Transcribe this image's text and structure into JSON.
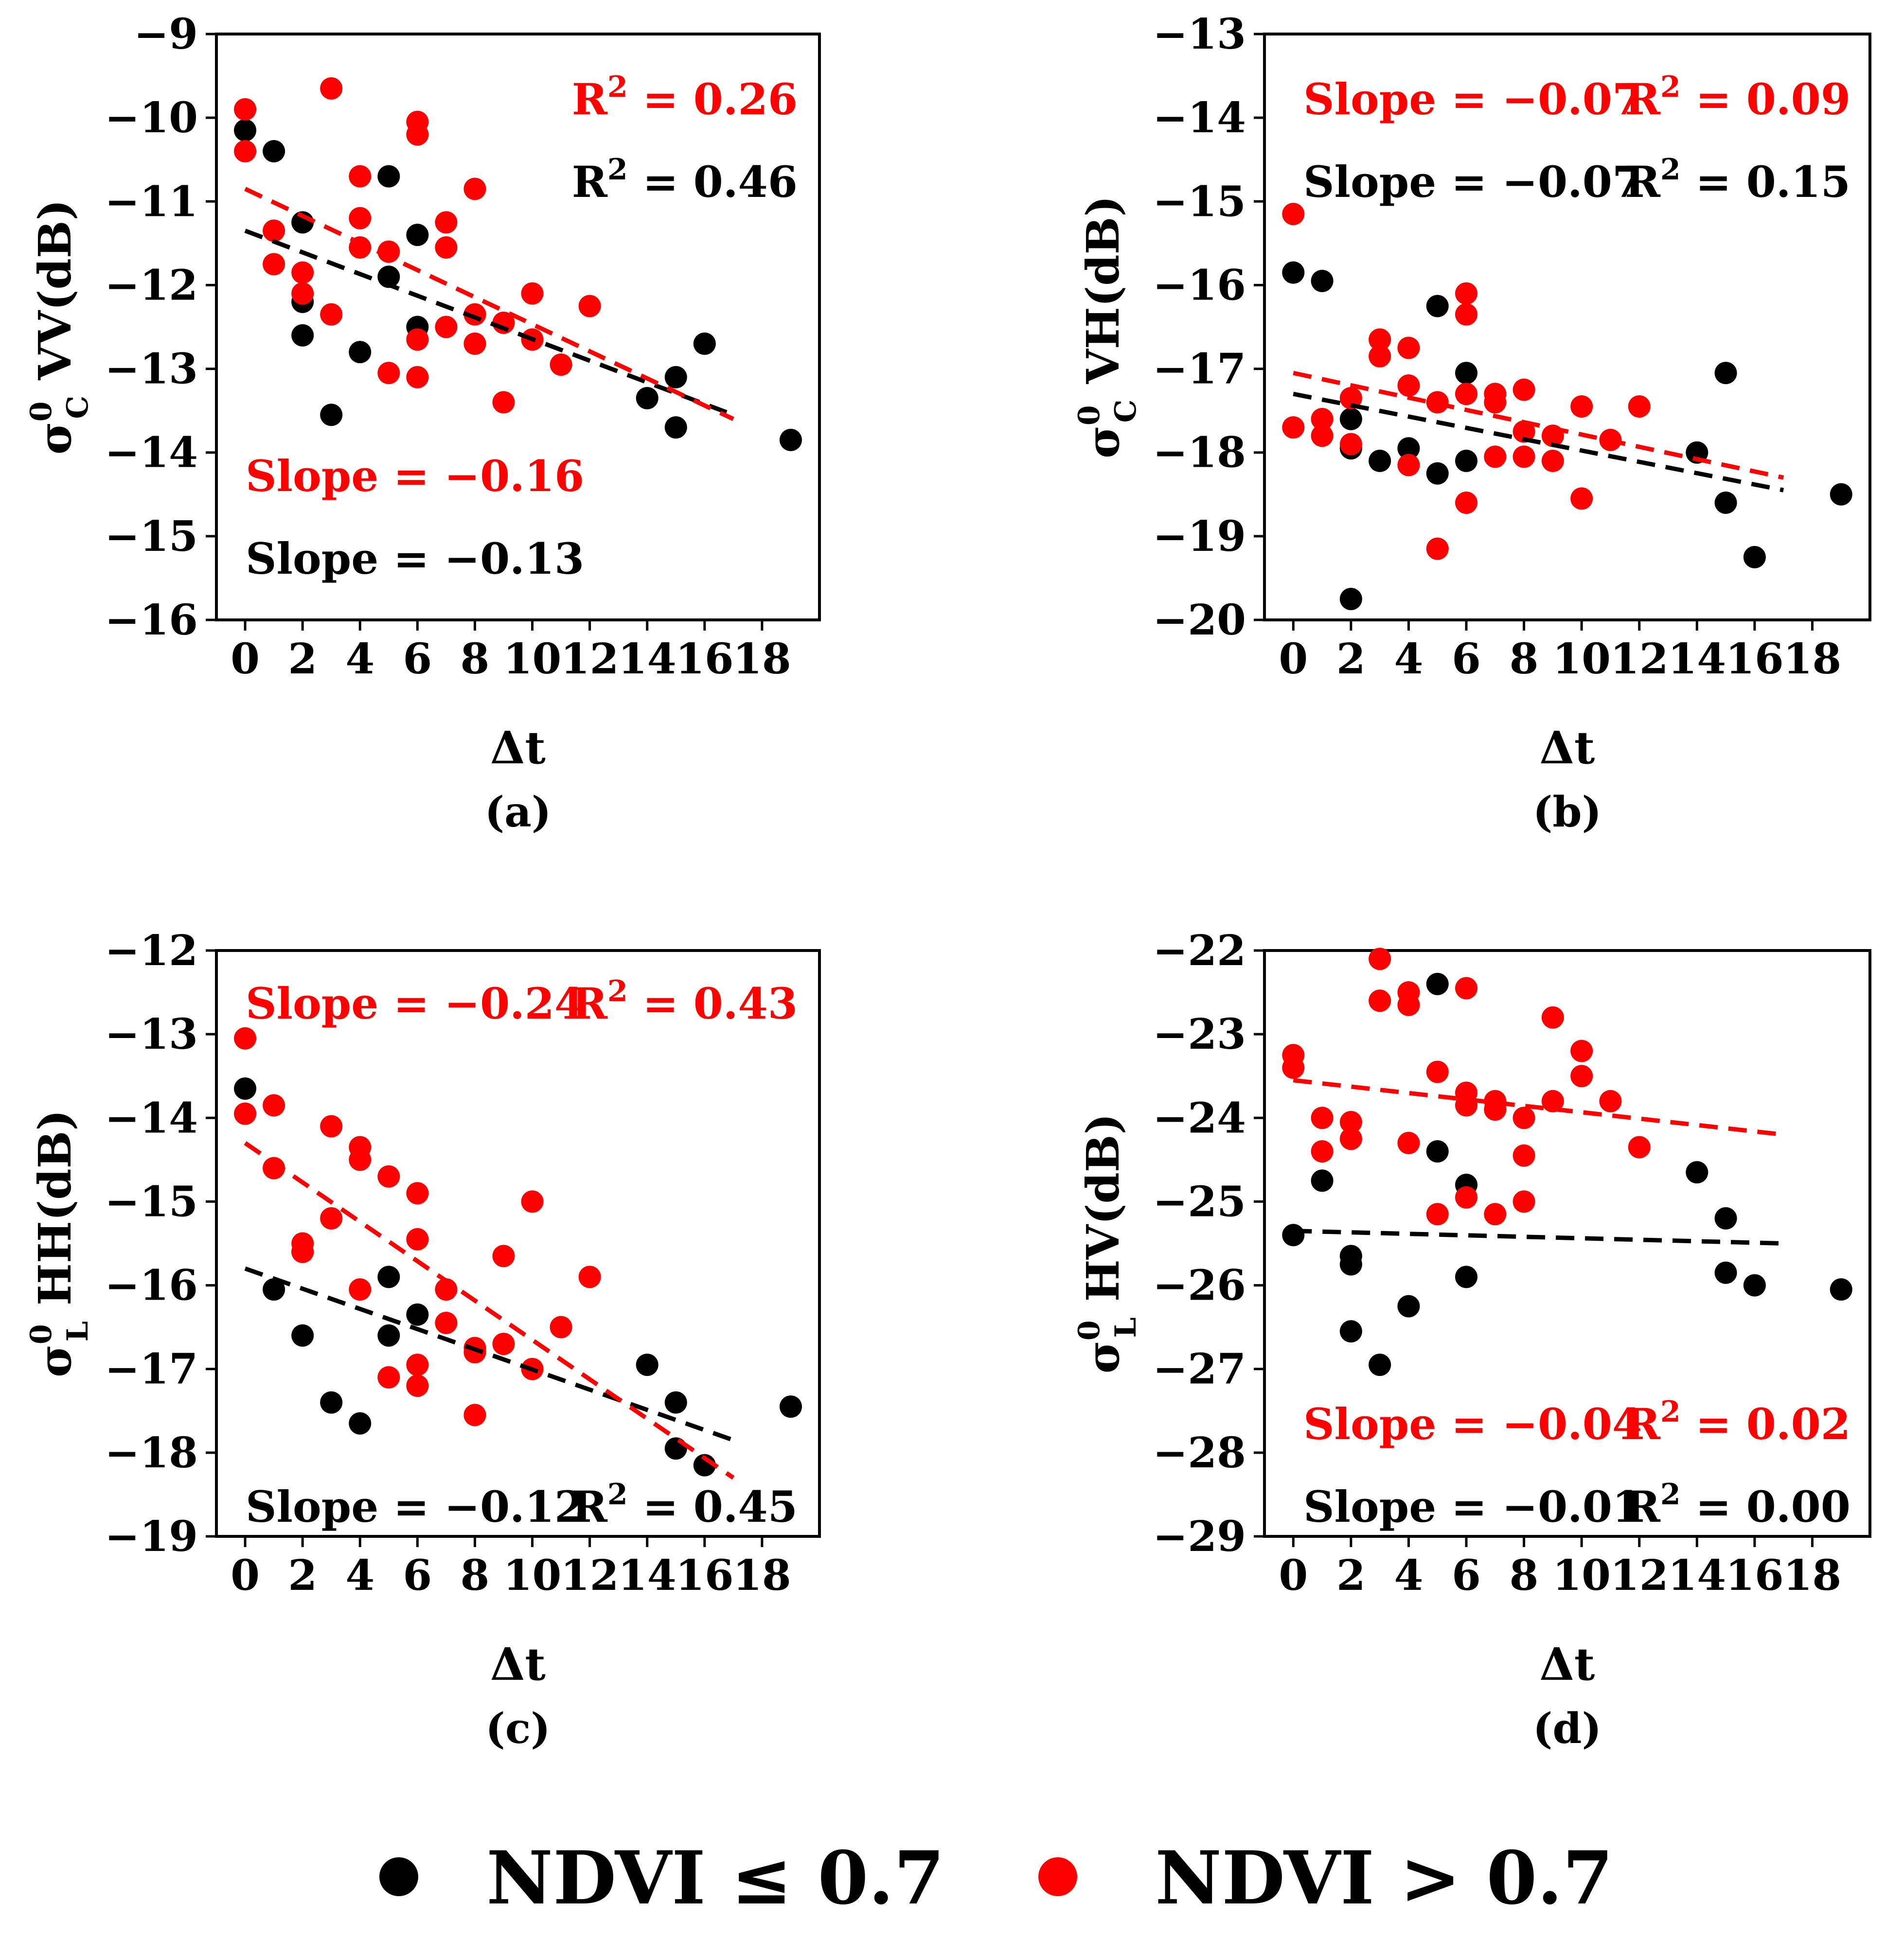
{
  "chart_data": [
    {
      "type": "scatter",
      "panel_label": "(a)",
      "xlabel": "Δt",
      "ylabel": {
        "sigma": "σ",
        "sup": "0",
        "sub": "C",
        "rest": " VV(dB)"
      },
      "xlim": [
        -1,
        20
      ],
      "ylim": [
        -16,
        -9
      ],
      "xticks": [
        "0",
        "2",
        "4",
        "6",
        "8",
        "10",
        "12",
        "14",
        "16",
        "18"
      ],
      "yticks": [
        "−9",
        "−10",
        "−11",
        "−12",
        "−13",
        "−14",
        "−15",
        "−16"
      ],
      "series": [
        {
          "name": "NDVI ≤ 0.7",
          "color": "#000000",
          "points": [
            [
              0,
              -10.15
            ],
            [
              1,
              -10.4
            ],
            [
              2,
              -11.25
            ],
            [
              2,
              -12.2
            ],
            [
              2,
              -12.6
            ],
            [
              3,
              -13.55
            ],
            [
              4,
              -12.8
            ],
            [
              5,
              -10.7
            ],
            [
              5,
              -11.9
            ],
            [
              6,
              -11.4
            ],
            [
              6,
              -12.5
            ],
            [
              14,
              -13.35
            ],
            [
              15,
              -13.1
            ],
            [
              15,
              -13.7
            ],
            [
              16,
              -12.7
            ],
            [
              19,
              -13.85
            ]
          ],
          "fit": {
            "x": [
              0,
              17
            ],
            "y": [
              -11.35,
              -13.55
            ]
          }
        },
        {
          "name": "NDVI > 0.7",
          "color": "#ff0000",
          "points": [
            [
              0,
              -9.9
            ],
            [
              0,
              -10.4
            ],
            [
              1,
              -11.35
            ],
            [
              1,
              -11.75
            ],
            [
              2,
              -11.85
            ],
            [
              2,
              -12.1
            ],
            [
              3,
              -9.65
            ],
            [
              3,
              -12.35
            ],
            [
              4,
              -10.7
            ],
            [
              4,
              -11.2
            ],
            [
              4,
              -11.55
            ],
            [
              5,
              -11.6
            ],
            [
              5,
              -13.05
            ],
            [
              6,
              -10.05
            ],
            [
              6,
              -10.2
            ],
            [
              6,
              -12.65
            ],
            [
              6,
              -13.1
            ],
            [
              7,
              -11.25
            ],
            [
              7,
              -11.55
            ],
            [
              7,
              -12.5
            ],
            [
              8,
              -10.85
            ],
            [
              8,
              -12.35
            ],
            [
              8,
              -12.7
            ],
            [
              9,
              -12.45
            ],
            [
              9,
              -13.4
            ],
            [
              10,
              -12.1
            ],
            [
              10,
              -12.65
            ],
            [
              11,
              -12.95
            ],
            [
              12,
              -12.25
            ]
          ],
          "fit": {
            "x": [
              0,
              17
            ],
            "y": [
              -10.85,
              -13.6
            ]
          }
        }
      ],
      "annotations": [
        {
          "id": "r2_red",
          "color": "#ff0000",
          "parts": {
            "pre": "R",
            "sup": "2",
            "post": " = 0.26"
          }
        },
        {
          "id": "r2_black",
          "color": "#000000",
          "parts": {
            "pre": "R",
            "sup": "2",
            "post": " = 0.46"
          }
        },
        {
          "id": "slope_red",
          "color": "#ff0000",
          "text": "Slope = −0.16"
        },
        {
          "id": "slope_black",
          "color": "#000000",
          "text": "Slope = −0.13"
        }
      ]
    },
    {
      "type": "scatter",
      "panel_label": "(b)",
      "xlabel": "Δt",
      "ylabel": {
        "sigma": "σ",
        "sup": "0",
        "sub": "C",
        "rest": " VH(dB)"
      },
      "xlim": [
        -1,
        20
      ],
      "ylim": [
        -20,
        -13
      ],
      "xticks": [
        "0",
        "2",
        "4",
        "6",
        "8",
        "10",
        "12",
        "14",
        "16",
        "18"
      ],
      "yticks": [
        "−13",
        "−14",
        "−15",
        "−16",
        "−17",
        "−18",
        "−19",
        "−20"
      ],
      "series": [
        {
          "name": "NDVI ≤ 0.7",
          "color": "#000000",
          "points": [
            [
              0,
              -15.85
            ],
            [
              1,
              -15.95
            ],
            [
              2,
              -17.6
            ],
            [
              2,
              -17.95
            ],
            [
              2,
              -19.75
            ],
            [
              3,
              -18.1
            ],
            [
              4,
              -17.95
            ],
            [
              5,
              -16.25
            ],
            [
              5,
              -18.25
            ],
            [
              6,
              -17.05
            ],
            [
              6,
              -18.1
            ],
            [
              14,
              -18.0
            ],
            [
              15,
              -17.05
            ],
            [
              15,
              -18.6
            ],
            [
              16,
              -19.25
            ],
            [
              19,
              -18.5
            ]
          ],
          "fit": {
            "x": [
              0,
              17
            ],
            "y": [
              -17.3,
              -18.45
            ]
          }
        },
        {
          "name": "NDVI > 0.7",
          "color": "#ff0000",
          "points": [
            [
              0,
              -15.15
            ],
            [
              0,
              -17.7
            ],
            [
              1,
              -17.6
            ],
            [
              1,
              -17.8
            ],
            [
              2,
              -17.35
            ],
            [
              2,
              -17.9
            ],
            [
              3,
              -16.65
            ],
            [
              3,
              -16.85
            ],
            [
              4,
              -16.75
            ],
            [
              4,
              -17.2
            ],
            [
              4,
              -18.15
            ],
            [
              5,
              -17.4
            ],
            [
              5,
              -19.15
            ],
            [
              6,
              -16.1
            ],
            [
              6,
              -16.35
            ],
            [
              6,
              -17.3
            ],
            [
              6,
              -18.6
            ],
            [
              7,
              -17.3
            ],
            [
              7,
              -17.4
            ],
            [
              7,
              -18.05
            ],
            [
              8,
              -17.25
            ],
            [
              8,
              -17.75
            ],
            [
              8,
              -18.05
            ],
            [
              9,
              -17.8
            ],
            [
              9,
              -18.1
            ],
            [
              10,
              -17.45
            ],
            [
              10,
              -18.55
            ],
            [
              11,
              -17.85
            ],
            [
              12,
              -17.45
            ]
          ],
          "fit": {
            "x": [
              0,
              17
            ],
            "y": [
              -17.05,
              -18.3
            ]
          }
        }
      ],
      "annotations": [
        {
          "id": "slope_red",
          "color": "#ff0000",
          "text": "Slope = −0.07"
        },
        {
          "id": "r2_red",
          "color": "#ff0000",
          "parts": {
            "pre": "R",
            "sup": "2",
            "post": " = 0.09"
          }
        },
        {
          "id": "slope_black",
          "color": "#000000",
          "text": "Slope = −0.07"
        },
        {
          "id": "r2_black",
          "color": "#000000",
          "parts": {
            "pre": "R",
            "sup": "2",
            "post": " = 0.15"
          }
        }
      ]
    },
    {
      "type": "scatter",
      "panel_label": "(c)",
      "xlabel": "Δt",
      "ylabel": {
        "sigma": "σ",
        "sup": "0",
        "sub": "L",
        "rest": " HH(dB)"
      },
      "xlim": [
        -1,
        20
      ],
      "ylim": [
        -19,
        -12
      ],
      "xticks": [
        "0",
        "2",
        "4",
        "6",
        "8",
        "10",
        "12",
        "14",
        "16",
        "18"
      ],
      "yticks": [
        "−12",
        "−13",
        "−14",
        "−15",
        "−16",
        "−17",
        "−18",
        "−19"
      ],
      "series": [
        {
          "name": "NDVI ≤ 0.7",
          "color": "#000000",
          "points": [
            [
              0,
              -13.65
            ],
            [
              1,
              -16.05
            ],
            [
              2,
              -15.6
            ],
            [
              2,
              -16.6
            ],
            [
              3,
              -17.4
            ],
            [
              4,
              -17.65
            ],
            [
              5,
              -15.9
            ],
            [
              5,
              -16.6
            ],
            [
              6,
              -16.35
            ],
            [
              14,
              -16.95
            ],
            [
              15,
              -17.4
            ],
            [
              15,
              -17.95
            ],
            [
              16,
              -18.15
            ],
            [
              19,
              -17.45
            ]
          ],
          "fit": {
            "x": [
              0,
              17
            ],
            "y": [
              -15.8,
              -17.85
            ]
          }
        },
        {
          "name": "NDVI > 0.7",
          "color": "#ff0000",
          "points": [
            [
              0,
              -13.05
            ],
            [
              0,
              -13.95
            ],
            [
              1,
              -13.85
            ],
            [
              1,
              -14.6
            ],
            [
              2,
              -15.5
            ],
            [
              2,
              -15.6
            ],
            [
              3,
              -14.1
            ],
            [
              3,
              -15.2
            ],
            [
              4,
              -14.35
            ],
            [
              4,
              -14.5
            ],
            [
              4,
              -16.05
            ],
            [
              5,
              -14.7
            ],
            [
              5,
              -17.1
            ],
            [
              6,
              -14.9
            ],
            [
              6,
              -15.45
            ],
            [
              6,
              -16.95
            ],
            [
              6,
              -17.2
            ],
            [
              7,
              -16.05
            ],
            [
              7,
              -16.45
            ],
            [
              8,
              -16.75
            ],
            [
              8,
              -16.8
            ],
            [
              8,
              -17.55
            ],
            [
              9,
              -15.65
            ],
            [
              9,
              -16.7
            ],
            [
              10,
              -15.0
            ],
            [
              10,
              -17.0
            ],
            [
              11,
              -16.5
            ],
            [
              12,
              -15.9
            ]
          ],
          "fit": {
            "x": [
              0,
              17
            ],
            "y": [
              -14.3,
              -18.3
            ]
          }
        }
      ],
      "annotations": [
        {
          "id": "slope_red",
          "color": "#ff0000",
          "text": "Slope = −0.24"
        },
        {
          "id": "r2_red",
          "color": "#ff0000",
          "parts": {
            "pre": "R",
            "sup": "2",
            "post": " = 0.43"
          }
        },
        {
          "id": "slope_black",
          "color": "#000000",
          "text": "Slope = −0.12"
        },
        {
          "id": "r2_black",
          "color": "#000000",
          "parts": {
            "pre": "R",
            "sup": "2",
            "post": " = 0.45"
          }
        }
      ]
    },
    {
      "type": "scatter",
      "panel_label": "(d)",
      "xlabel": "Δt",
      "ylabel": {
        "sigma": "σ",
        "sup": "0",
        "sub": "L",
        "rest": " HV(dB)"
      },
      "xlim": [
        -1,
        20
      ],
      "ylim": [
        -29,
        -22
      ],
      "xticks": [
        "0",
        "2",
        "4",
        "6",
        "8",
        "10",
        "12",
        "14",
        "16",
        "18"
      ],
      "yticks": [
        "−22",
        "−23",
        "−24",
        "−25",
        "−26",
        "−27",
        "−28",
        "−29"
      ],
      "series": [
        {
          "name": "NDVI ≤ 0.7",
          "color": "#000000",
          "points": [
            [
              0,
              -25.4
            ],
            [
              1,
              -24.75
            ],
            [
              2,
              -25.65
            ],
            [
              2,
              -25.75
            ],
            [
              2,
              -26.55
            ],
            [
              3,
              -26.95
            ],
            [
              4,
              -26.25
            ],
            [
              5,
              -22.4
            ],
            [
              5,
              -24.4
            ],
            [
              6,
              -24.8
            ],
            [
              6,
              -25.9
            ],
            [
              14,
              -24.65
            ],
            [
              15,
              -25.2
            ],
            [
              15,
              -25.85
            ],
            [
              16,
              -26.0
            ],
            [
              19,
              -26.05
            ]
          ],
          "fit": {
            "x": [
              0,
              17
            ],
            "y": [
              -25.35,
              -25.5
            ]
          }
        },
        {
          "name": "NDVI > 0.7",
          "color": "#ff0000",
          "points": [
            [
              0,
              -23.25
            ],
            [
              0,
              -23.4
            ],
            [
              1,
              -24.0
            ],
            [
              1,
              -24.4
            ],
            [
              2,
              -24.05
            ],
            [
              2,
              -24.25
            ],
            [
              3,
              -22.1
            ],
            [
              3,
              -22.6
            ],
            [
              4,
              -22.5
            ],
            [
              4,
              -22.65
            ],
            [
              4,
              -24.3
            ],
            [
              5,
              -23.45
            ],
            [
              5,
              -25.15
            ],
            [
              6,
              -22.45
            ],
            [
              6,
              -23.7
            ],
            [
              6,
              -23.85
            ],
            [
              6,
              -24.95
            ],
            [
              7,
              -23.8
            ],
            [
              7,
              -23.9
            ],
            [
              7,
              -25.15
            ],
            [
              8,
              -24.0
            ],
            [
              8,
              -24.45
            ],
            [
              8,
              -25.0
            ],
            [
              9,
              -22.8
            ],
            [
              9,
              -23.8
            ],
            [
              10,
              -23.2
            ],
            [
              10,
              -23.5
            ],
            [
              11,
              -23.8
            ],
            [
              12,
              -24.35
            ]
          ],
          "fit": {
            "x": [
              0,
              17
            ],
            "y": [
              -23.55,
              -24.2
            ]
          }
        }
      ],
      "annotations": [
        {
          "id": "slope_red",
          "color": "#ff0000",
          "text": "Slope = −0.04"
        },
        {
          "id": "r2_red",
          "color": "#ff0000",
          "parts": {
            "pre": "R",
            "sup": "2",
            "post": " = 0.02"
          }
        },
        {
          "id": "slope_black",
          "color": "#000000",
          "text": "Slope = −0.01"
        },
        {
          "id": "r2_black",
          "color": "#000000",
          "parts": {
            "pre": "R",
            "sup": "2",
            "post": " = 0.00"
          }
        }
      ]
    }
  ],
  "legend": {
    "placement": "bottom-center",
    "entries": [
      {
        "label": "NDVI ≤ 0.7",
        "color": "#000000"
      },
      {
        "label": "NDVI > 0.7",
        "color": "#ff0000"
      }
    ]
  }
}
